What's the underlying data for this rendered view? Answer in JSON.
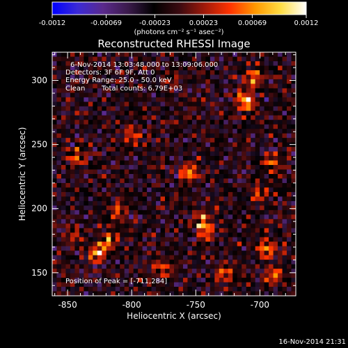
{
  "colorbar": {
    "min_label": "-0.0012",
    "ticks": [
      "-0.0012",
      "-0.00069",
      "-0.00023",
      "0.00023",
      "0.00069",
      "0.0012"
    ],
    "unit_label": "(photons cm⁻² s⁻¹ asec⁻²)",
    "colormap": [
      "#0000ff",
      "#3b2ad6",
      "#5a2a8c",
      "#3a1a4a",
      "#000000",
      "#3a0a10",
      "#a01a0a",
      "#ff3300",
      "#ff9900",
      "#ffdd44",
      "#ffffff"
    ]
  },
  "header": {
    "line1": "6-Nov-2014 13:03:48.000 to 13:09:06.000",
    "line2": "Detectors: 3F 6F 9F, Att 0",
    "line3": "Energy Range: 25.0 - 50.0 keV",
    "line4_a": "Clean",
    "line4_b": "Total counts: 6.79E+03"
  },
  "peak_label": "Position of Peak = [-711,284]",
  "footer_timestamp": "16-Nov-2014 21:31",
  "chart_data": {
    "type": "heatmap",
    "title": "Reconstructed RHESSI Image",
    "xlabel": "Heliocentric X (arcsec)",
    "ylabel": "Heliocentric Y (arcsec)",
    "xlim": [
      -862,
      -672
    ],
    "ylim": [
      132,
      322
    ],
    "xticks": [
      -850,
      -800,
      -750,
      -700
    ],
    "xtick_labels": [
      "-850",
      "-800",
      "-750",
      "-700"
    ],
    "yticks": [
      150,
      200,
      250,
      300
    ],
    "ytick_labels": [
      "150",
      "200",
      "250",
      "300"
    ],
    "peak": [
      -711,
      284
    ],
    "value_range": [
      -0.0012,
      0.0012
    ],
    "sources": [
      {
        "x": -711,
        "y": 284,
        "amp": 0.00115
      },
      {
        "x": -705,
        "y": 300,
        "amp": 0.0008
      },
      {
        "x": -755,
        "y": 228,
        "amp": 0.00095
      },
      {
        "x": -745,
        "y": 192,
        "amp": 0.0009
      },
      {
        "x": -742,
        "y": 182,
        "amp": 0.00085
      },
      {
        "x": -826,
        "y": 165,
        "amp": 0.001
      },
      {
        "x": -818,
        "y": 175,
        "amp": 0.0008
      },
      {
        "x": -810,
        "y": 198,
        "amp": 0.0007
      },
      {
        "x": -695,
        "y": 168,
        "amp": 0.0009
      },
      {
        "x": -690,
        "y": 148,
        "amp": 0.0008
      },
      {
        "x": -776,
        "y": 153,
        "amp": 0.0007
      },
      {
        "x": -800,
        "y": 258,
        "amp": 0.0007
      },
      {
        "x": -843,
        "y": 240,
        "amp": 0.00065
      },
      {
        "x": -690,
        "y": 236,
        "amp": 0.0006
      },
      {
        "x": -702,
        "y": 212,
        "amp": 0.0006
      },
      {
        "x": -845,
        "y": 178,
        "amp": 0.0005
      },
      {
        "x": -728,
        "y": 150,
        "amp": 0.0006
      },
      {
        "x": -770,
        "y": 300,
        "amp": 0.0004
      }
    ]
  }
}
